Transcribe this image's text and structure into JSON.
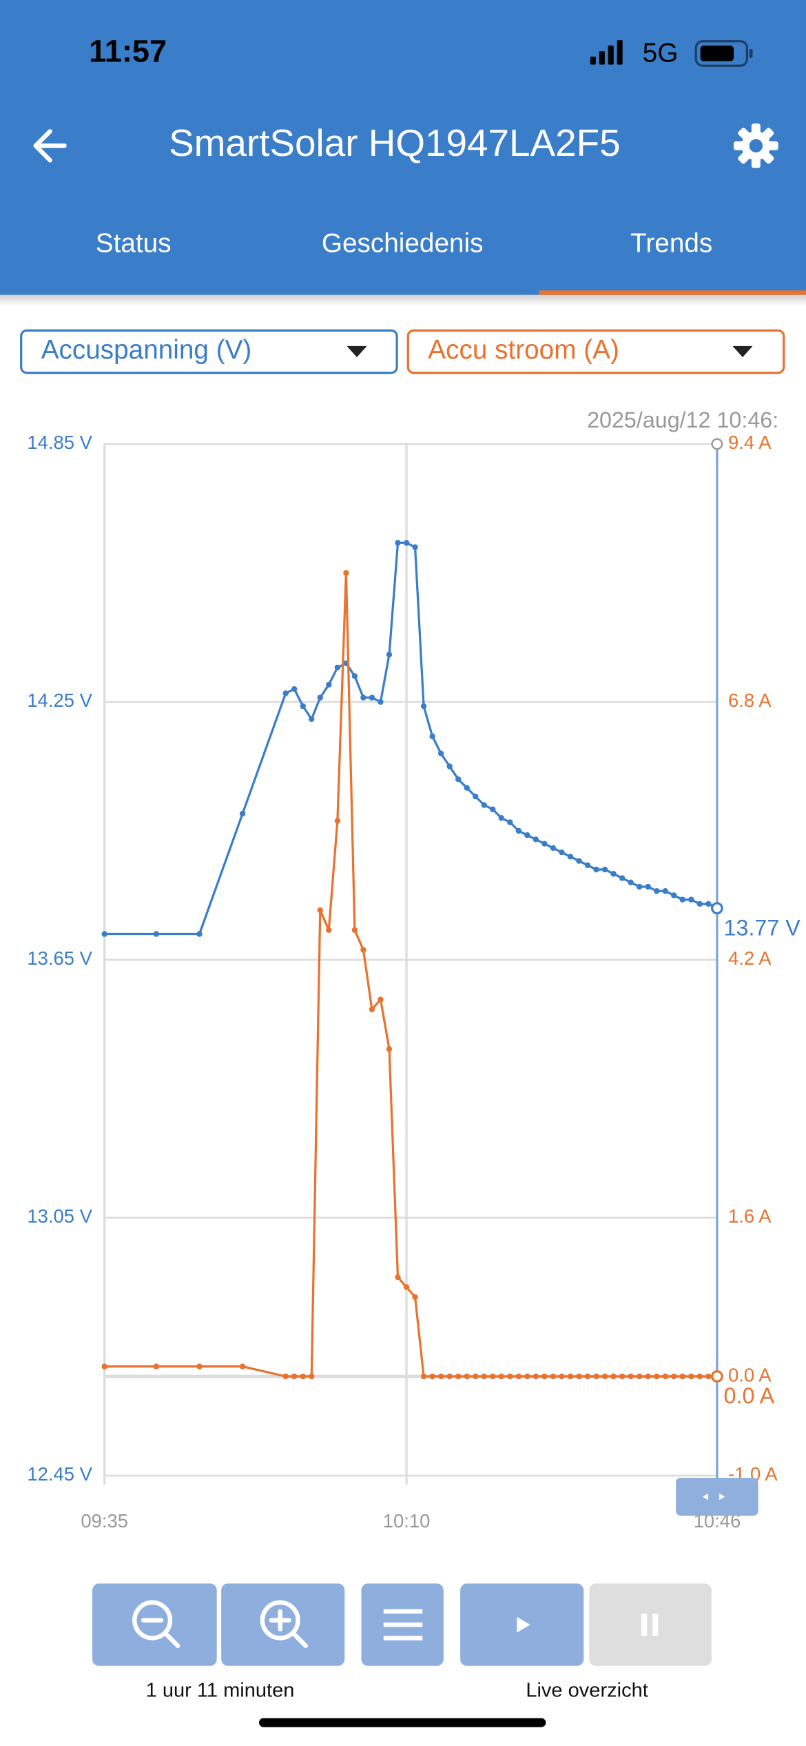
{
  "status_bar": {
    "time": "11:57",
    "network": "5G"
  },
  "header": {
    "title": "SmartSolar HQ1947LA2F5"
  },
  "tabs": [
    "Status",
    "Geschiedenis",
    "Trends"
  ],
  "chart_data": {
    "type": "line",
    "timestamp": "2025/aug/12 10:46:",
    "x": [
      "09:35",
      "09:41",
      "09:46",
      "09:51",
      "09:56",
      "09:57",
      "09:58",
      "09:59",
      "10:00",
      "10:01",
      "10:02",
      "10:03",
      "10:04",
      "10:05",
      "10:06",
      "10:07",
      "10:08",
      "10:09",
      "10:10",
      "10:11",
      "10:12",
      "10:13",
      "10:14",
      "10:15",
      "10:16",
      "10:17",
      "10:18",
      "10:19",
      "10:20",
      "10:21",
      "10:22",
      "10:23",
      "10:24",
      "10:25",
      "10:26",
      "10:27",
      "10:28",
      "10:29",
      "10:30",
      "10:31",
      "10:32",
      "10:33",
      "10:34",
      "10:35",
      "10:36",
      "10:37",
      "10:38",
      "10:39",
      "10:40",
      "10:41",
      "10:42",
      "10:43",
      "10:44",
      "10:45",
      "10:46"
    ],
    "xlim": [
      "09:35",
      "10:46"
    ],
    "xticks": [
      "09:35",
      "10:10",
      "10:46"
    ],
    "ylim": [
      12.45,
      14.85
    ],
    "yticks": [
      {
        "value": 12.45,
        "label": "12.45 V"
      },
      {
        "value": 13.05,
        "label": "13.05 V"
      },
      {
        "value": 13.65,
        "label": "13.65 V"
      },
      {
        "value": 14.25,
        "label": "14.25 V"
      },
      {
        "value": 14.85,
        "label": "14.85 V"
      }
    ],
    "y2lim": [
      -1.0,
      9.4
    ],
    "y2ticks": [
      {
        "value": -1.0,
        "label": "-1.0 A"
      },
      {
        "value": 0.0,
        "label": "0.0 A"
      },
      {
        "value": 1.6,
        "label": "1.6 A"
      },
      {
        "value": 4.2,
        "label": "4.2 A"
      },
      {
        "value": 6.8,
        "label": "6.8 A"
      },
      {
        "value": 9.4,
        "label": "9.4 A"
      }
    ],
    "grid": true,
    "series": [
      {
        "name": "Accuspanning (V)",
        "color": "#3a7dc9",
        "current_label": "13.77 V",
        "values": [
          13.71,
          13.71,
          13.71,
          13.99,
          14.27,
          14.28,
          14.24,
          14.21,
          14.26,
          14.29,
          14.33,
          14.34,
          14.31,
          14.26,
          14.26,
          14.25,
          14.36,
          14.62,
          14.62,
          14.61,
          14.24,
          14.17,
          14.13,
          14.1,
          14.07,
          14.05,
          14.03,
          14.01,
          14.0,
          13.98,
          13.97,
          13.95,
          13.94,
          13.93,
          13.92,
          13.91,
          13.9,
          13.89,
          13.88,
          13.87,
          13.86,
          13.86,
          13.85,
          13.84,
          13.83,
          13.82,
          13.82,
          13.81,
          13.81,
          13.8,
          13.79,
          13.79,
          13.78,
          13.78,
          13.77
        ]
      },
      {
        "name": "Accu stroom (A)",
        "color": "#e8722e",
        "axis": "y2",
        "current_label": "0.0 A",
        "values": [
          0.1,
          0.1,
          0.1,
          0.1,
          0.0,
          0.0,
          0.0,
          0.0,
          4.7,
          4.5,
          5.6,
          8.1,
          4.5,
          4.3,
          3.7,
          3.8,
          3.3,
          1.0,
          0.9,
          0.8,
          0.0,
          0.0,
          0.0,
          0.0,
          0.0,
          0.0,
          0.0,
          0.0,
          0.0,
          0.0,
          0.0,
          0.0,
          0.0,
          0.0,
          0.0,
          0.0,
          0.0,
          0.0,
          0.0,
          0.0,
          0.0,
          0.0,
          0.0,
          0.0,
          0.0,
          0.0,
          0.0,
          0.0,
          0.0,
          0.0,
          0.0,
          0.0,
          0.0,
          0.0,
          0.0
        ]
      }
    ]
  },
  "controls": {
    "zoom_label": "1 uur 11 minuten",
    "live_label": "Live overzicht"
  }
}
